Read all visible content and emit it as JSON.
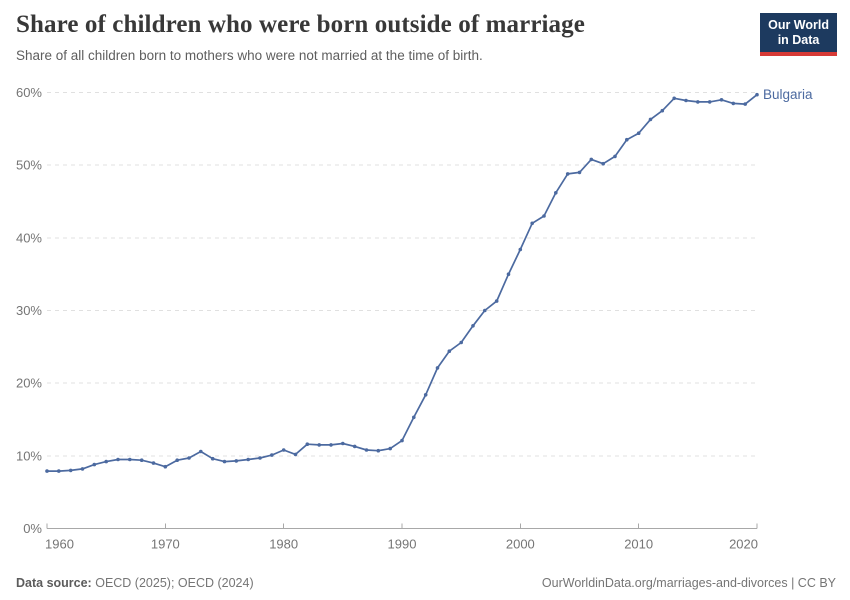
{
  "header": {
    "title": "Share of children who were born outside of marriage",
    "subtitle": "Share of all children born to mothers who were not married at the time of birth.",
    "logo_line1": "Our World",
    "logo_line2": "in Data"
  },
  "colors": {
    "series_blue": "#4c6aa0",
    "logo_navy": "#1d3a5f",
    "logo_red": "#d73a36",
    "gridline": "#e0e0e0",
    "axis": "#a8a8a8",
    "tick_text": "#757575"
  },
  "chart_data": {
    "type": "line",
    "title": "Share of children who were born outside of marriage",
    "xlabel": "",
    "ylabel": "",
    "xlim": [
      1960,
      2020
    ],
    "ylim": [
      0,
      60
    ],
    "grid": "horizontal-dashed",
    "legend_position": "end-of-line-label",
    "xtick_years": [
      1960,
      1970,
      1980,
      1990,
      2000,
      2010,
      2020
    ],
    "xtick_labels": [
      "1960",
      "1970",
      "1980",
      "1990",
      "2000",
      "2010",
      "2020"
    ],
    "ytick_values": [
      0,
      10,
      20,
      30,
      40,
      50,
      60
    ],
    "ytick_labels": [
      "0%",
      "10%",
      "20%",
      "30%",
      "40%",
      "50%",
      "60%"
    ],
    "x": [
      1960,
      1961,
      1962,
      1963,
      1964,
      1965,
      1966,
      1967,
      1968,
      1969,
      1970,
      1971,
      1972,
      1973,
      1974,
      1975,
      1976,
      1977,
      1978,
      1979,
      1980,
      1981,
      1982,
      1983,
      1984,
      1985,
      1986,
      1987,
      1988,
      1989,
      1990,
      1991,
      1992,
      1993,
      1994,
      1995,
      1996,
      1997,
      1998,
      1999,
      2000,
      2001,
      2002,
      2003,
      2004,
      2005,
      2006,
      2007,
      2008,
      2009,
      2010,
      2011,
      2012,
      2013,
      2014,
      2015,
      2016,
      2017,
      2018,
      2019,
      2020
    ],
    "series": [
      {
        "name": "Bulgaria",
        "color": "#4c6aa0",
        "values": [
          7.9,
          7.9,
          8.0,
          8.2,
          8.8,
          9.2,
          9.5,
          9.5,
          9.4,
          9.0,
          8.5,
          9.4,
          9.7,
          10.6,
          9.6,
          9.2,
          9.3,
          9.5,
          9.7,
          10.1,
          10.8,
          10.2,
          11.6,
          11.5,
          11.5,
          11.7,
          11.3,
          10.8,
          10.7,
          11.0,
          12.1,
          15.3,
          18.4,
          22.1,
          24.4,
          25.6,
          27.9,
          30.0,
          31.3,
          35.0,
          38.4,
          42.0,
          43.0,
          46.2,
          48.8,
          49.0,
          50.8,
          50.2,
          51.2,
          53.5,
          54.4,
          56.3,
          57.5,
          59.2,
          58.9,
          58.7,
          58.7,
          59.0,
          58.5,
          58.4,
          59.7
        ]
      }
    ]
  },
  "footer": {
    "datasource_label": "Data source:",
    "datasource_value": "OECD (2025); OECD (2024)",
    "link": "OurWorldinData.org/marriages-and-divorces | CC BY"
  }
}
